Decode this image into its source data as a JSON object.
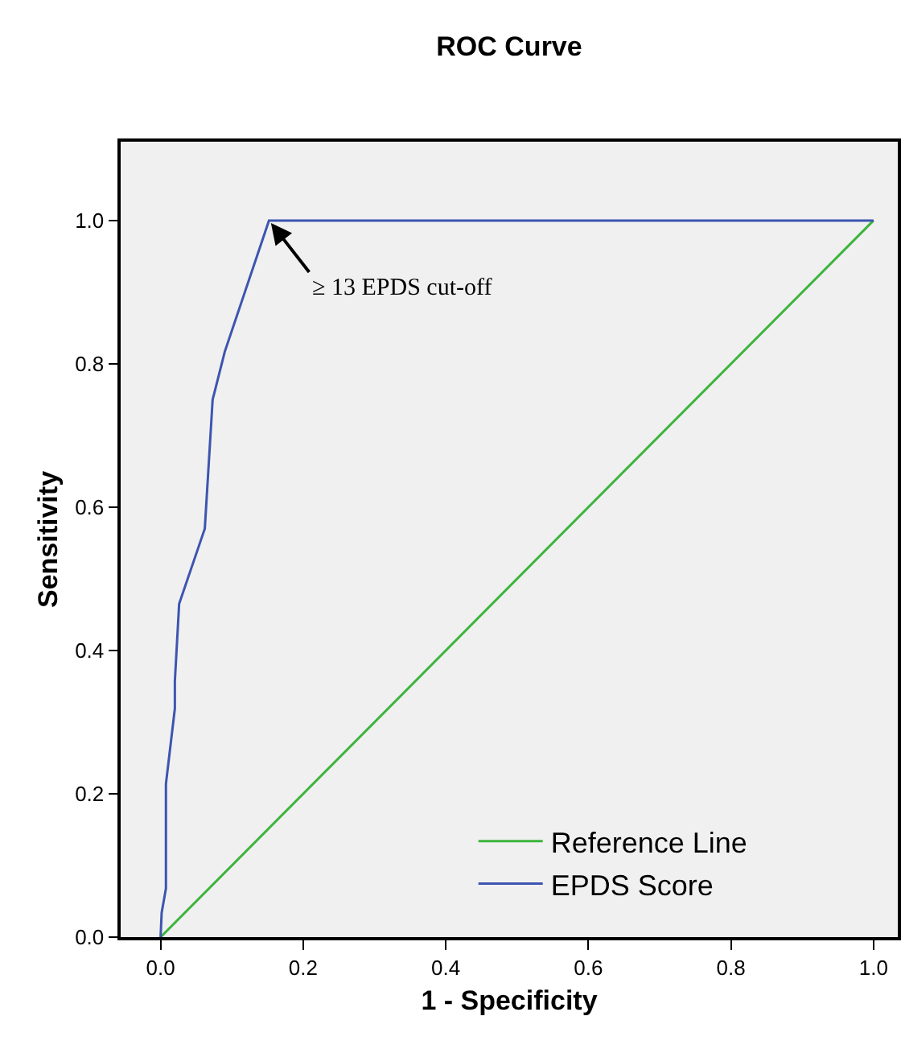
{
  "chart_data": {
    "type": "line",
    "title": "ROC Curve",
    "xlabel": "1 - Specificity",
    "ylabel": "Sensitivity",
    "series": [
      {
        "name": "Reference Line",
        "color": "#3cb43c",
        "x": [
          0,
          1
        ],
        "values": [
          0,
          1
        ]
      },
      {
        "name": "EPDS Score",
        "color": "#3d55b0",
        "x": [
          0,
          0.0015,
          0.0075,
          0.0075,
          0.02,
          0.02,
          0.026,
          0.062,
          0.073,
          0.09,
          0.152,
          1
        ],
        "values": [
          0,
          0.034,
          0.068,
          0.214,
          0.319,
          0.357,
          0.465,
          0.57,
          0.75,
          0.817,
          1,
          1
        ]
      }
    ],
    "annotations": [
      {
        "text": "≥ 13 EPDS cut-off",
        "x": 0.152,
        "y": 1
      }
    ],
    "xlim": [
      -0.056,
      1.034
    ],
    "ylim": [
      0,
      1.11
    ],
    "xticks": [
      {
        "value": 0,
        "label": "0.0"
      },
      {
        "value": 0.2,
        "label": "0.2"
      },
      {
        "value": 0.4,
        "label": "0.4"
      },
      {
        "value": 0.6,
        "label": "0.6"
      },
      {
        "value": 0.8,
        "label": "0.8"
      },
      {
        "value": 1,
        "label": "1.0"
      }
    ],
    "yticks": [
      {
        "value": 0,
        "label": "0.0"
      },
      {
        "value": 0.2,
        "label": "0.2"
      },
      {
        "value": 0.4,
        "label": "0.4"
      },
      {
        "value": 0.6,
        "label": "0.6"
      },
      {
        "value": 0.8,
        "label": "0.8"
      },
      {
        "value": 1,
        "label": "1.0"
      }
    ],
    "grid": false,
    "legend": "bottom right",
    "marker": "none",
    "line_style": "solid"
  }
}
